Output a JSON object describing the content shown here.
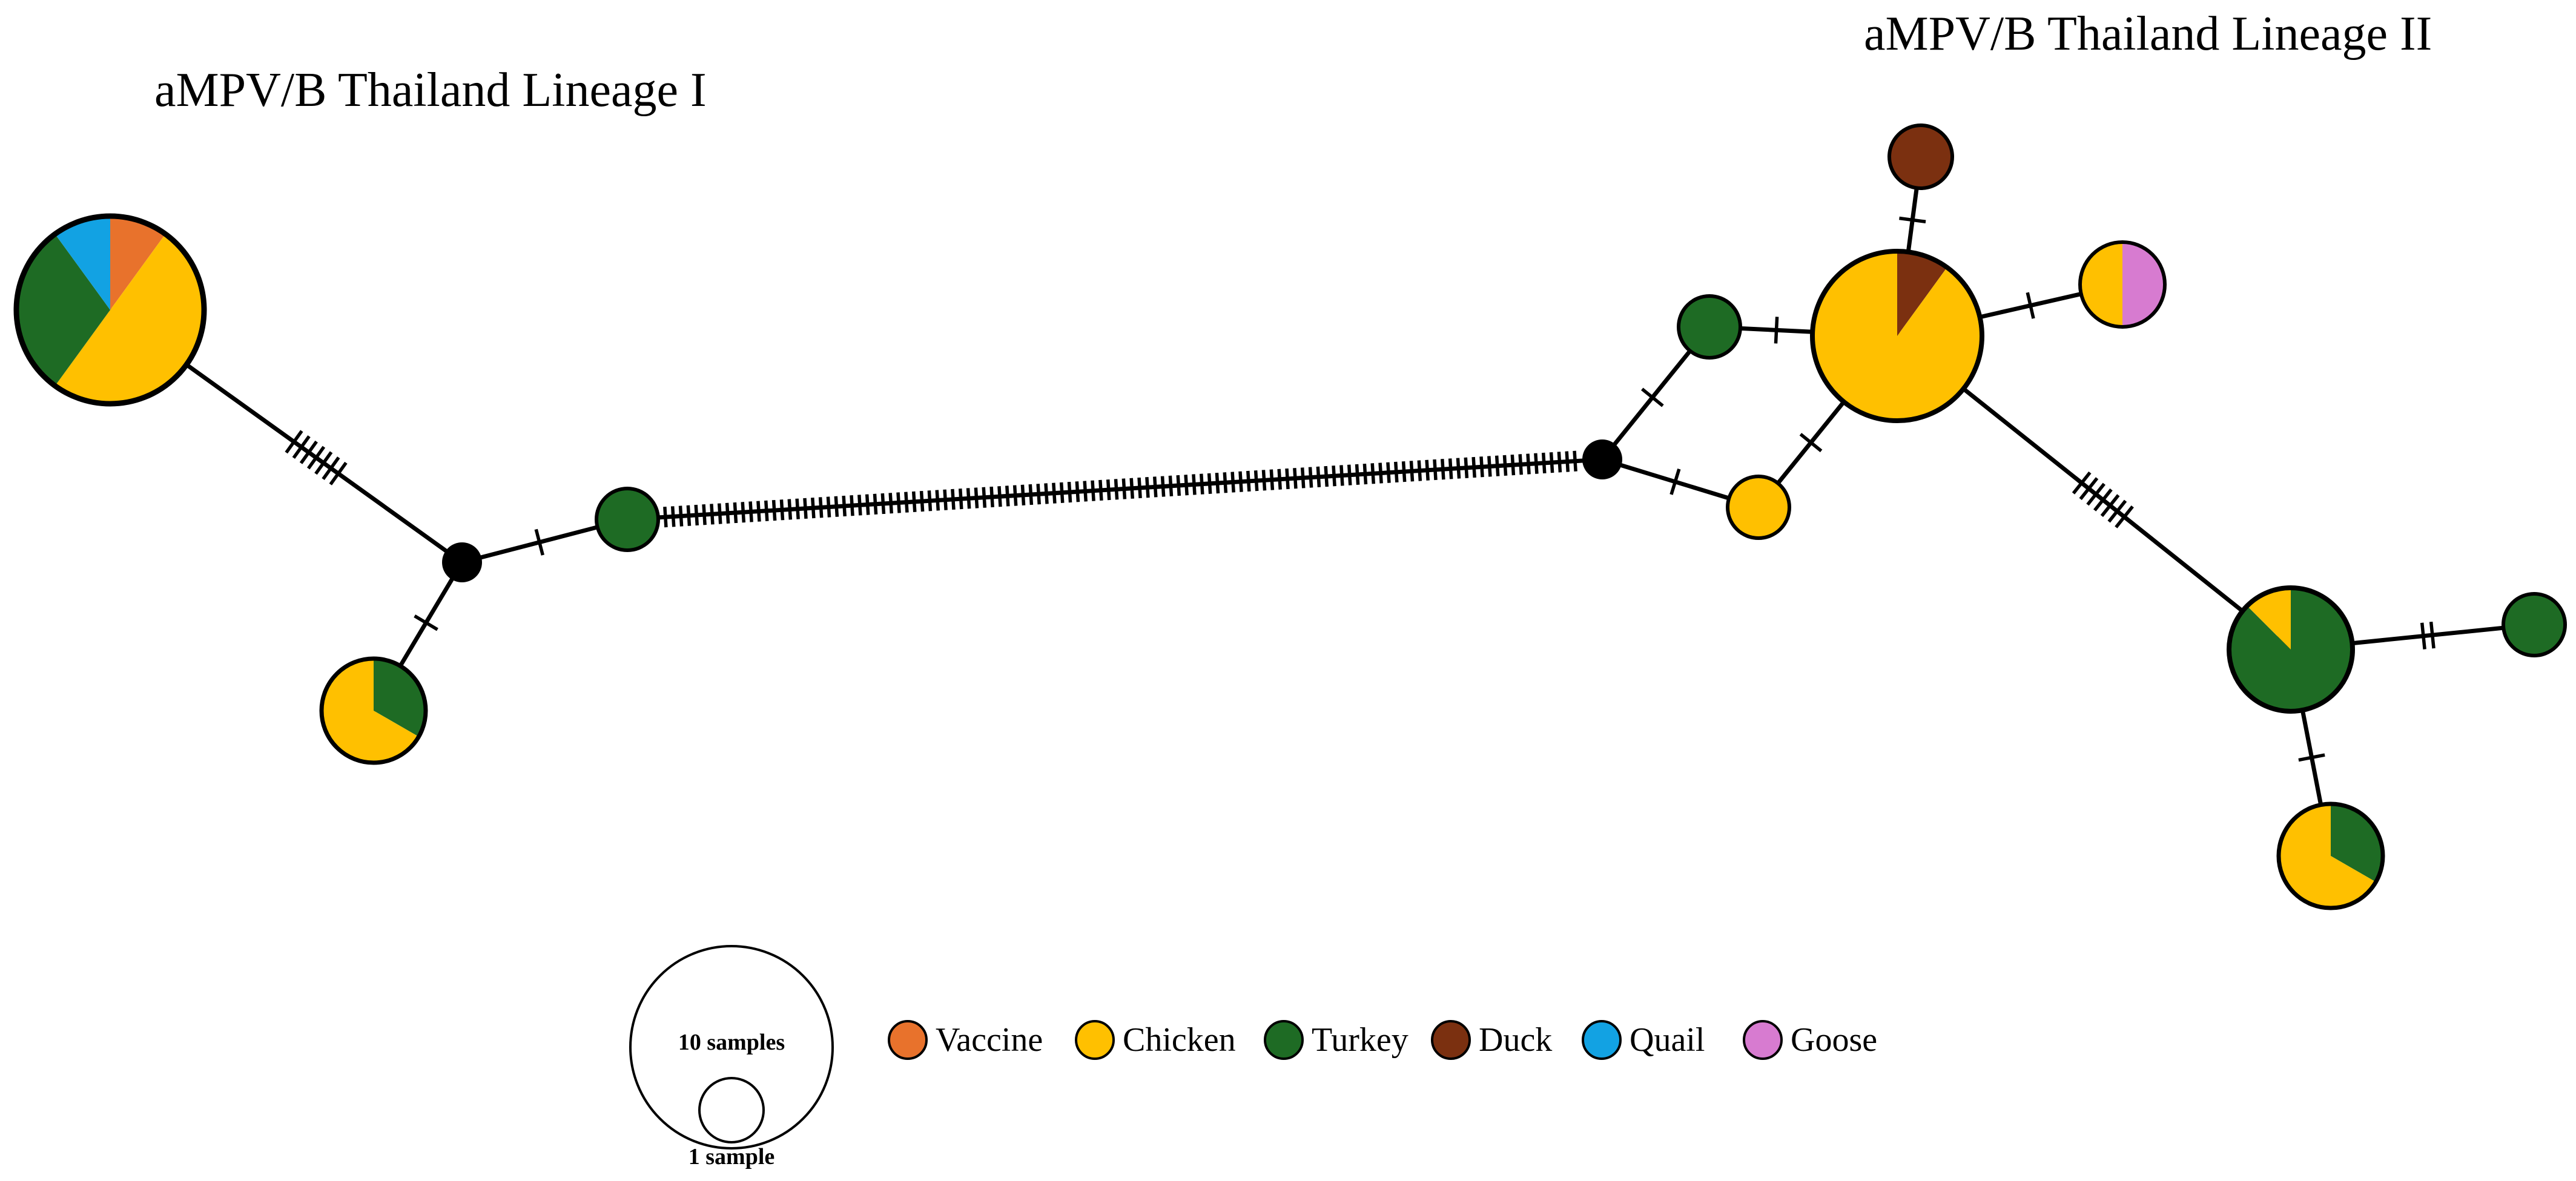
{
  "titles": {
    "lineage_1": "aMPV/B Thailand Lineage I",
    "lineage_2": "aMPV/B Thailand Lineage II"
  },
  "hosts": [
    {
      "key": "vaccine",
      "label": "Vaccine",
      "color": "#E8722C"
    },
    {
      "key": "chicken",
      "label": "Chicken",
      "color": "#FFC000"
    },
    {
      "key": "turkey",
      "label": "Turkey",
      "color": "#1E6B24"
    },
    {
      "key": "duck",
      "label": "Duck",
      "color": "#7B3010"
    },
    {
      "key": "quail",
      "label": "Quail",
      "color": "#12A2E3"
    },
    {
      "key": "goose",
      "label": "Goose",
      "color": "#D77BD0"
    }
  ],
  "size_legend": {
    "large_label": "10 samples",
    "small_label": "1 sample"
  },
  "haplotypes": [
    {
      "id": "L1_major",
      "samples": 10,
      "composition": {
        "vaccine": 1,
        "chicken": 5,
        "turkey": 3,
        "quail": 1
      }
    },
    {
      "id": "L1_mixed",
      "samples": 3,
      "composition": {
        "turkey": 1,
        "chicken": 2
      }
    },
    {
      "id": "L1_turkey",
      "samples": 1,
      "composition": {
        "turkey": 1
      }
    },
    {
      "id": "L2_turkey_a",
      "samples": 1,
      "composition": {
        "turkey": 1
      }
    },
    {
      "id": "L2_chicken_a",
      "samples": 1,
      "composition": {
        "chicken": 1
      }
    },
    {
      "id": "L2_major",
      "samples": 10,
      "composition": {
        "duck": 1,
        "chicken": 9
      }
    },
    {
      "id": "L2_duck",
      "samples": 1,
      "composition": {
        "duck": 1
      }
    },
    {
      "id": "L2_goose_mix",
      "samples": 2,
      "composition": {
        "goose": 1,
        "chicken": 1
      }
    },
    {
      "id": "L2_turkey_major",
      "samples": 4,
      "composition": {
        "turkey": 3.5,
        "chicken": 0.5
      }
    },
    {
      "id": "L2_turkey_b",
      "samples": 1,
      "composition": {
        "turkey": 1
      }
    },
    {
      "id": "L2_mixed_b",
      "samples": 3,
      "composition": {
        "turkey": 1,
        "chicken": 2
      }
    },
    {
      "id": "MV1",
      "samples": 0,
      "median_vector": true
    },
    {
      "id": "MV2",
      "samples": 0,
      "median_vector": true
    }
  ],
  "edges": [
    {
      "from": "L1_major",
      "to": "MV1",
      "mutations": 7
    },
    {
      "from": "L1_mixed",
      "to": "MV1",
      "mutations": 1
    },
    {
      "from": "MV1",
      "to": "L1_turkey",
      "mutations": 1
    },
    {
      "from": "L1_turkey",
      "to": "MV2",
      "mutations": 118
    },
    {
      "from": "MV2",
      "to": "L2_turkey_a",
      "mutations": 1
    },
    {
      "from": "MV2",
      "to": "L2_chicken_a",
      "mutations": 1
    },
    {
      "from": "L2_turkey_a",
      "to": "L2_major",
      "mutations": 1
    },
    {
      "from": "L2_chicken_a",
      "to": "L2_major",
      "mutations": 1
    },
    {
      "from": "L2_major",
      "to": "L2_duck",
      "mutations": 1
    },
    {
      "from": "L2_major",
      "to": "L2_goose_mix",
      "mutations": 1
    },
    {
      "from": "L2_major",
      "to": "L2_turkey_major",
      "mutations": 7
    },
    {
      "from": "L2_turkey_major",
      "to": "L2_turkey_b",
      "mutations": 2
    },
    {
      "from": "L2_turkey_major",
      "to": "L2_mixed_b",
      "mutations": 1
    }
  ]
}
